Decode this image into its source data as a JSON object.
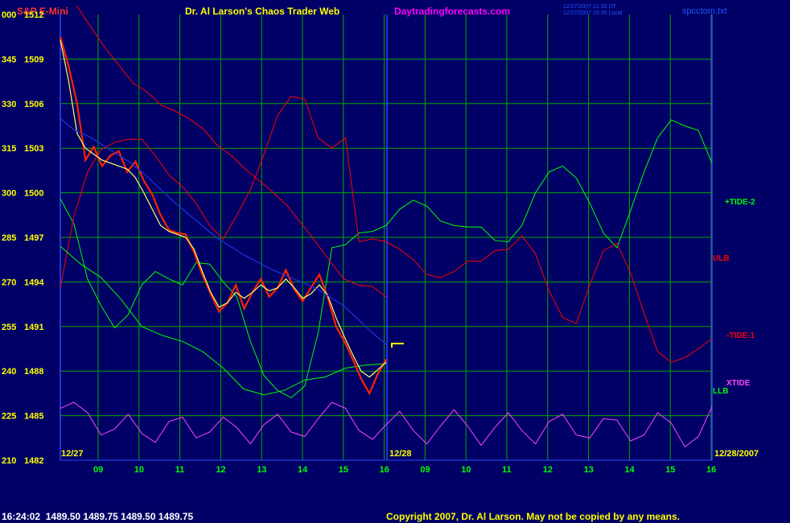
{
  "header": {
    "instrument": "S&P E-Mini",
    "title": "Dr. Al Larson's Chaos Trader Web",
    "site": "Daytradingforecasts.com",
    "stamp_line1": "12/27/2007 21:30 UT",
    "stamp_line2": "12/27/2007 15:30 Local",
    "file": "spcctom.txt"
  },
  "chart_data": {
    "type": "line",
    "y_left_labels": [
      "000",
      "345",
      "330",
      "315",
      "300",
      "285",
      "270",
      "255",
      "240",
      "225",
      "210"
    ],
    "y_price_labels": [
      "1512",
      "1509",
      "1506",
      "1503",
      "1500",
      "1497",
      "1494",
      "1491",
      "1488",
      "1485",
      "1482"
    ],
    "ylim": [
      1482,
      1512
    ],
    "x_ticks": [
      "09",
      "10",
      "11",
      "12",
      "13",
      "14",
      "15",
      "16",
      "09",
      "10",
      "11",
      "12",
      "13",
      "14",
      "15",
      "16"
    ],
    "day_labels": [
      "12/27",
      "12/28",
      "12/28/2007"
    ],
    "series": [
      {
        "name": "+TIDE-2",
        "color": "#00ff00",
        "values": [
          1499.6,
          1497.9,
          1494.2,
          1492.4,
          1490.9,
          1491.8,
          1493.8,
          1494.7,
          1494.2,
          1493.8,
          1495.3,
          1495.2,
          1494.0,
          1493.0,
          1490.0,
          1487.7,
          1486.7,
          1486.2,
          1487.0,
          1490.6,
          1496.3,
          1496.5,
          1497.3,
          1497.4,
          1497.8,
          1498.9,
          1499.5,
          1499.1,
          1498.1,
          1497.8,
          1497.7,
          1497.7,
          1496.8,
          1496.7,
          1497.8,
          1500.0,
          1501.4,
          1501.8,
          1501.0,
          1499.3,
          1497.3,
          1496.3,
          1498.8,
          1501.4,
          1503.7,
          1504.9,
          1504.5,
          1504.2,
          1502.0
        ]
      },
      {
        "name": "ULB",
        "color": "#ff0000",
        "values": [
          1493.6,
          1498.4,
          1501.4,
          1502.9,
          1503.4,
          1503.6,
          1503.6,
          1502.5,
          1501.2,
          1500.4,
          1499.3,
          1497.8,
          1496.9,
          1498.5,
          1500.2,
          1502.6,
          1505.2,
          1506.5,
          1506.3,
          1503.7,
          1503.0,
          1503.7,
          1496.7,
          1496.9,
          1496.7,
          1496.2,
          1495.5,
          1494.5,
          1494.3,
          1494.7,
          1495.4,
          1495.4,
          1496.1,
          1496.2,
          1497.1,
          1495.9,
          1493.4,
          1491.6,
          1491.2,
          1493.8,
          1496.1,
          1496.6,
          1494.6,
          1491.9,
          1489.3,
          1488.6,
          1488.9,
          1489.5,
          1490.2
        ]
      },
      {
        "name": "-TIDE-1",
        "color": "#ff0000",
        "values": [
          1512.6,
          1511.2,
          1509.8,
          1508.6,
          1507.4,
          1506.8,
          1505.9,
          1505.5,
          1505.0,
          1504.3,
          1503.2,
          1502.5,
          1501.6,
          1500.8,
          1500.0,
          1499.1,
          1497.9,
          1496.7,
          1495.4,
          1494.2,
          1493.8,
          1493.7,
          1493.0
        ]
      },
      {
        "name": "LLB",
        "color": "#00ff00",
        "values": [
          1496.4,
          1495.2,
          1494.3,
          1492.8,
          1491.0,
          1490.4,
          1490.0,
          1489.3,
          1488.2,
          1486.8,
          1486.4,
          1486.7,
          1487.4,
          1487.6,
          1488.2,
          1488.4,
          1488.5
        ]
      },
      {
        "name": "XTIDE",
        "color": "#ff44ff",
        "values": [
          1485.5,
          1485.9,
          1485.2,
          1483.7,
          1484.1,
          1485.1,
          1483.8,
          1483.2,
          1484.6,
          1484.9,
          1483.5,
          1483.9,
          1484.9,
          1484.2,
          1483.1,
          1484.4,
          1485.1,
          1483.9,
          1483.6,
          1484.8,
          1485.9,
          1485.5,
          1484.0,
          1483.4,
          1484.4,
          1485.3,
          1484.0,
          1483.1,
          1484.3,
          1485.4,
          1484.3,
          1483.0,
          1484.2,
          1485.2,
          1484.0,
          1483.1,
          1484.6,
          1485.1,
          1483.7,
          1483.5,
          1484.8,
          1484.7,
          1483.3,
          1483.7,
          1485.2,
          1484.5,
          1482.9,
          1483.6,
          1485.6
        ]
      },
      {
        "name": "price",
        "color": "#ff2200",
        "values": [
          1510.5,
          1508.5,
          1506.0,
          1502.2,
          1503.1,
          1501.8,
          1502.5,
          1502.8,
          1501.4,
          1502.1,
          1500.8,
          1499.9,
          1498.5,
          1497.5,
          1497.3,
          1497.2,
          1496.0,
          1494.5,
          1493.2,
          1492.0,
          1492.6,
          1493.8,
          1492.2,
          1493.3,
          1494.2,
          1493.0,
          1493.6,
          1494.8,
          1493.5,
          1492.7,
          1493.6,
          1494.5,
          1493.0,
          1491.0,
          1490.0,
          1488.8,
          1487.5,
          1486.5,
          1487.8,
          1488.8
        ]
      },
      {
        "name": "avg",
        "color": "#ffff66",
        "values": [
          1510.3,
          1507.5,
          1504.0,
          1503.0,
          1502.6,
          1502.2,
          1502.0,
          1501.8,
          1501.6,
          1501.0,
          1500.0,
          1498.9,
          1497.8,
          1497.4,
          1497.2,
          1497.0,
          1496.2,
          1494.7,
          1493.3,
          1492.3,
          1492.6,
          1493.3,
          1492.9,
          1493.3,
          1493.8,
          1493.4,
          1493.6,
          1494.2,
          1493.6,
          1492.9,
          1493.2,
          1493.8,
          1493.1,
          1491.6,
          1490.3,
          1489.1,
          1488.0,
          1487.6,
          1488.1,
          1488.6
        ]
      },
      {
        "name": "blue",
        "color": "#2233dd",
        "values": [
          1505.0,
          1504.2,
          1503.8,
          1503.2,
          1502.6,
          1502.0,
          1501.2,
          1500.3,
          1499.4,
          1498.6,
          1497.8,
          1497.0,
          1496.4,
          1495.8,
          1495.3,
          1494.8,
          1494.4,
          1494.0,
          1493.6,
          1493.0,
          1492.4,
          1491.5,
          1490.6,
          1489.8
        ]
      }
    ],
    "trailing_labels": [
      "+TIDE-2",
      "ULB",
      "-TIDE-1",
      "XTIDE",
      "LLB"
    ],
    "grid": "on"
  },
  "status_bar": {
    "time": "16:24:02",
    "quote": "1489.50 1489.75 1489.50 1489.75"
  },
  "copyright": "Copyright 2007, Dr. Al Larson. May not be copied by any means."
}
